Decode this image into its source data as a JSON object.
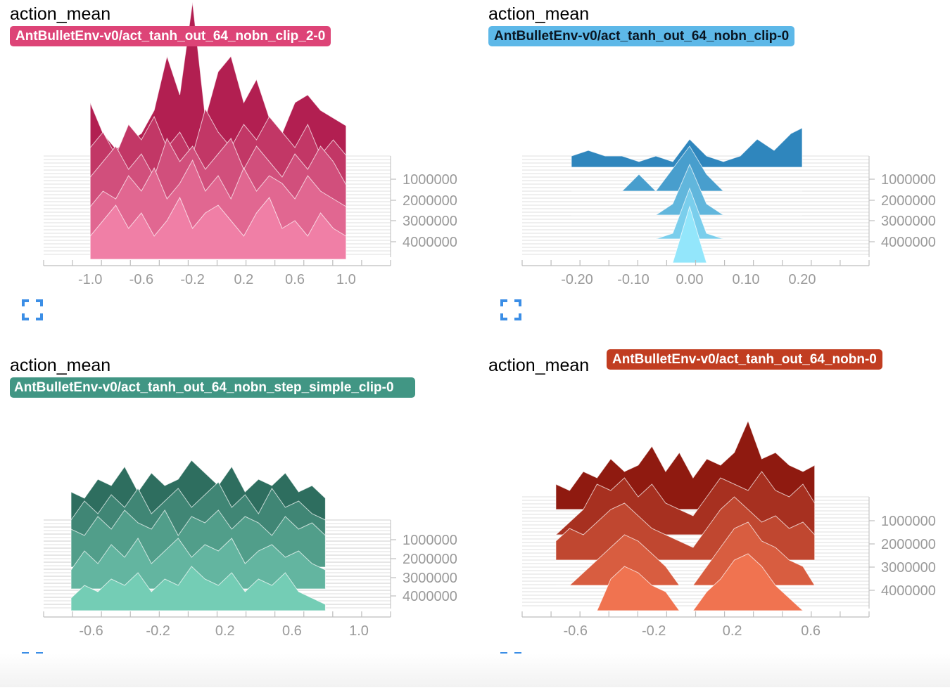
{
  "chart_data": [
    {
      "type": "area",
      "title": "action_mean",
      "run": "AntBulletEnv-v0/act_tanh_out_64_nobn_clip_2-0",
      "color_dark": "#b21f51",
      "color_light": "#f07fa6",
      "xlim": [
        -1.1,
        1.1
      ],
      "x_ticks": [
        "-1.0",
        "-0.6",
        "-0.2",
        "0.2",
        "0.6",
        "1.0"
      ],
      "y_ticks": [
        "1000000",
        "2000000",
        "3000000",
        "4000000"
      ],
      "steps": [
        0,
        1000000,
        2000000,
        3000000,
        4000000
      ],
      "series": [
        {
          "x": [
            -1.0,
            -0.9,
            -0.8,
            -0.7,
            -0.6,
            -0.5,
            -0.4,
            -0.3,
            -0.2,
            -0.1,
            0.0,
            0.1,
            0.2,
            0.3,
            0.4,
            0.5,
            0.6,
            0.7,
            0.8,
            0.9,
            1.0
          ],
          "values": [
            9,
            5,
            3,
            4,
            5,
            8,
            15,
            10,
            22,
            7,
            13,
            15,
            9,
            12,
            7,
            5,
            9,
            10,
            8,
            7,
            6
          ]
        },
        {
          "x": [
            -1.0,
            -0.9,
            -0.8,
            -0.7,
            -0.6,
            -0.5,
            -0.4,
            -0.3,
            -0.2,
            -0.1,
            0.0,
            0.1,
            0.2,
            0.3,
            0.4,
            0.5,
            0.6,
            0.7,
            0.8,
            0.9,
            1.0
          ],
          "values": [
            6,
            8,
            5,
            9,
            7,
            10,
            6,
            8,
            5,
            11,
            8,
            6,
            9,
            7,
            10,
            8,
            6,
            9,
            5,
            7,
            5
          ]
        },
        {
          "x": [
            -1.0,
            -0.9,
            -0.8,
            -0.7,
            -0.6,
            -0.5,
            -0.4,
            -0.3,
            -0.2,
            -0.1,
            0.0,
            0.1,
            0.2,
            0.3,
            0.4,
            0.5,
            0.6,
            0.7,
            0.8,
            0.9,
            1.0
          ],
          "values": [
            5,
            7,
            9,
            6,
            8,
            5,
            10,
            7,
            9,
            6,
            8,
            10,
            6,
            9,
            7,
            5,
            8,
            6,
            9,
            7,
            4
          ]
        },
        {
          "x": [
            -1.0,
            -0.9,
            -0.8,
            -0.7,
            -0.6,
            -0.5,
            -0.4,
            -0.3,
            -0.2,
            -0.1,
            0.0,
            0.1,
            0.2,
            0.3,
            0.4,
            0.5,
            0.6,
            0.7,
            0.8,
            0.9,
            1.0
          ],
          "values": [
            4,
            6,
            5,
            8,
            6,
            9,
            5,
            7,
            10,
            6,
            8,
            5,
            9,
            6,
            8,
            7,
            5,
            8,
            6,
            5,
            4
          ]
        },
        {
          "x": [
            -1.0,
            -0.9,
            -0.8,
            -0.7,
            -0.6,
            -0.5,
            -0.4,
            -0.3,
            -0.2,
            -0.1,
            0.0,
            0.1,
            0.2,
            0.3,
            0.4,
            0.5,
            0.6,
            0.7,
            0.8,
            0.9,
            1.0
          ],
          "values": [
            3,
            5,
            7,
            4,
            6,
            3,
            5,
            8,
            4,
            6,
            7,
            5,
            3,
            6,
            8,
            4,
            5,
            3,
            6,
            4,
            3
          ]
        }
      ]
    },
    {
      "type": "area",
      "title": "action_mean",
      "run": "AntBulletEnv-v0/act_tanh_out_64_nobn_clip-0",
      "color_dark": "#2f86bd",
      "color_light": "#93e6fb",
      "xlim": [
        -0.25,
        0.25
      ],
      "x_ticks": [
        "-0.20",
        "-0.10",
        "0.00",
        "0.10",
        "0.20"
      ],
      "y_ticks": [
        "1000000",
        "2000000",
        "3000000",
        "4000000"
      ],
      "steps": [
        0,
        1000000,
        2000000,
        3000000,
        4000000
      ],
      "series": [
        {
          "x": [
            -0.21,
            -0.18,
            -0.15,
            -0.12,
            -0.09,
            -0.06,
            -0.03,
            0.0,
            0.03,
            0.06,
            0.09,
            0.12,
            0.15,
            0.18,
            0.2
          ],
          "values": [
            2,
            3,
            2,
            2,
            1,
            2,
            1,
            5,
            2,
            1,
            2,
            5,
            3,
            6,
            7
          ]
        },
        {
          "x": [
            -0.21,
            -0.18,
            -0.15,
            -0.12,
            -0.09,
            -0.06,
            -0.03,
            0.0,
            0.03,
            0.06,
            0.09,
            0.12,
            0.15,
            0.18,
            0.2
          ],
          "values": [
            0,
            0,
            0,
            0,
            3,
            0,
            4,
            8,
            3,
            0,
            0,
            0,
            0,
            0,
            0
          ]
        },
        {
          "x": [
            -0.21,
            -0.18,
            -0.15,
            -0.12,
            -0.09,
            -0.06,
            -0.03,
            0.0,
            0.03,
            0.06,
            0.09,
            0.12,
            0.15,
            0.18,
            0.2
          ],
          "values": [
            0,
            0,
            0,
            0,
            0,
            0,
            2,
            9,
            2,
            0,
            0,
            0,
            0,
            0,
            0
          ]
        },
        {
          "x": [
            -0.21,
            -0.18,
            -0.15,
            -0.12,
            -0.09,
            -0.06,
            -0.03,
            0.0,
            0.03,
            0.06,
            0.09,
            0.12,
            0.15,
            0.18,
            0.2
          ],
          "values": [
            0,
            0,
            0,
            0,
            0,
            0,
            1,
            9,
            1,
            0,
            0,
            0,
            0,
            0,
            0
          ]
        },
        {
          "x": [
            -0.21,
            -0.18,
            -0.15,
            -0.12,
            -0.09,
            -0.06,
            -0.03,
            0.0,
            0.03,
            0.06,
            0.09,
            0.12,
            0.15,
            0.18,
            0.2
          ],
          "values": [
            0,
            0,
            0,
            0,
            0,
            0,
            0,
            10,
            0,
            0,
            0,
            0,
            0,
            0,
            0
          ]
        }
      ]
    },
    {
      "type": "area",
      "title": "action_mean",
      "run": "AntBulletEnv-v0/act_tanh_out_64_nobn_step_simple_clip-0",
      "color_dark": "#2e6e5f",
      "color_light": "#74cdb5",
      "xlim": [
        -0.8,
        1.0
      ],
      "x_ticks": [
        "-0.6",
        "-0.2",
        "0.2",
        "0.6",
        "1.0"
      ],
      "y_ticks": [
        "1000000",
        "2000000",
        "3000000",
        "4000000"
      ],
      "steps": [
        0,
        1000000,
        2000000,
        3000000,
        4000000
      ],
      "series": [
        {
          "x": [
            -0.72,
            -0.64,
            -0.56,
            -0.48,
            -0.4,
            -0.32,
            -0.24,
            -0.16,
            -0.08,
            0.0,
            0.08,
            0.16,
            0.24,
            0.32,
            0.4,
            0.48,
            0.56,
            0.64,
            0.72,
            0.8
          ],
          "values": [
            5,
            4,
            7,
            6,
            9,
            5,
            8,
            6,
            7,
            10,
            8,
            6,
            9,
            5,
            7,
            6,
            8,
            5,
            6,
            4
          ]
        },
        {
          "x": [
            -0.72,
            -0.64,
            -0.56,
            -0.48,
            -0.4,
            -0.32,
            -0.24,
            -0.16,
            -0.08,
            0.0,
            0.08,
            0.16,
            0.24,
            0.32,
            0.4,
            0.48,
            0.56,
            0.64,
            0.72,
            0.8
          ],
          "values": [
            4,
            7,
            5,
            8,
            6,
            9,
            5,
            7,
            9,
            6,
            8,
            10,
            6,
            8,
            5,
            9,
            6,
            7,
            5,
            4
          ]
        },
        {
          "x": [
            -0.72,
            -0.64,
            -0.56,
            -0.48,
            -0.4,
            -0.32,
            -0.24,
            -0.16,
            -0.08,
            0.0,
            0.08,
            0.16,
            0.24,
            0.32,
            0.4,
            0.48,
            0.56,
            0.64,
            0.72,
            0.8
          ],
          "values": [
            6,
            5,
            8,
            6,
            9,
            7,
            6,
            9,
            5,
            8,
            7,
            9,
            6,
            8,
            7,
            5,
            8,
            6,
            7,
            5
          ]
        },
        {
          "x": [
            -0.72,
            -0.64,
            -0.56,
            -0.48,
            -0.4,
            -0.32,
            -0.24,
            -0.16,
            -0.08,
            0.0,
            0.08,
            0.16,
            0.24,
            0.32,
            0.4,
            0.48,
            0.56,
            0.64,
            0.72,
            0.8
          ],
          "values": [
            3,
            6,
            4,
            7,
            5,
            8,
            4,
            6,
            8,
            5,
            7,
            6,
            8,
            4,
            6,
            7,
            5,
            6,
            4,
            3
          ]
        },
        {
          "x": [
            -0.72,
            -0.64,
            -0.56,
            -0.48,
            -0.4,
            -0.32,
            -0.24,
            -0.16,
            -0.08,
            0.0,
            0.08,
            0.16,
            0.24,
            0.32,
            0.4,
            0.48,
            0.56,
            0.64,
            0.72,
            0.8
          ],
          "values": [
            2,
            4,
            3,
            5,
            4,
            6,
            3,
            5,
            4,
            7,
            5,
            4,
            6,
            3,
            5,
            4,
            6,
            3,
            2,
            1
          ]
        }
      ]
    },
    {
      "type": "area",
      "title": "action_mean",
      "run": "AntBulletEnv-v0/act_tanh_out_64_nobn-0",
      "color_dark": "#8f1a10",
      "color_light": "#f07350",
      "xlim": [
        -0.8,
        0.7
      ],
      "x_ticks": [
        "-0.6",
        "-0.2",
        "0.2",
        "0.6"
      ],
      "y_ticks": [
        "1000000",
        "2000000",
        "3000000",
        "4000000"
      ],
      "steps": [
        0,
        1000000,
        2000000,
        3000000,
        4000000
      ],
      "series": [
        {
          "x": [
            -0.7,
            -0.63,
            -0.56,
            -0.49,
            -0.42,
            -0.35,
            -0.28,
            -0.21,
            -0.14,
            -0.07,
            0.0,
            0.07,
            0.14,
            0.21,
            0.28,
            0.35,
            0.42,
            0.49,
            0.56,
            0.62
          ],
          "values": [
            4,
            3,
            6,
            5,
            8,
            6,
            7,
            10,
            6,
            9,
            5,
            8,
            7,
            9,
            14,
            8,
            9,
            7,
            6,
            7
          ]
        },
        {
          "x": [
            -0.7,
            -0.63,
            -0.56,
            -0.49,
            -0.42,
            -0.35,
            -0.28,
            -0.21,
            -0.14,
            -0.07,
            0.0,
            0.07,
            0.14,
            0.21,
            0.28,
            0.35,
            0.42,
            0.49,
            0.56,
            0.62
          ],
          "values": [
            0,
            2,
            4,
            8,
            7,
            9,
            6,
            8,
            5,
            4,
            3,
            6,
            9,
            8,
            7,
            10,
            7,
            6,
            8,
            5
          ]
        },
        {
          "x": [
            -0.7,
            -0.63,
            -0.56,
            -0.49,
            -0.42,
            -0.35,
            -0.28,
            -0.21,
            -0.14,
            -0.07,
            0.0,
            0.07,
            0.14,
            0.21,
            0.28,
            0.35,
            0.42,
            0.49,
            0.56,
            0.62
          ],
          "values": [
            3,
            5,
            4,
            6,
            8,
            9,
            7,
            5,
            4,
            3,
            2,
            5,
            8,
            10,
            8,
            6,
            7,
            5,
            6,
            4
          ]
        },
        {
          "x": [
            -0.7,
            -0.63,
            -0.56,
            -0.49,
            -0.42,
            -0.35,
            -0.28,
            -0.21,
            -0.14,
            -0.07,
            0.0,
            0.07,
            0.14,
            0.21,
            0.28,
            0.35,
            0.42,
            0.49,
            0.56,
            0.62
          ],
          "values": [
            0,
            0,
            2,
            4,
            6,
            8,
            7,
            5,
            3,
            0,
            0,
            3,
            6,
            9,
            10,
            7,
            6,
            4,
            3,
            0
          ]
        },
        {
          "x": [
            -0.7,
            -0.63,
            -0.56,
            -0.49,
            -0.42,
            -0.35,
            -0.28,
            -0.21,
            -0.14,
            -0.07,
            0.0,
            0.07,
            0.14,
            0.21,
            0.28,
            0.35,
            0.42,
            0.49,
            0.56,
            0.62
          ],
          "values": [
            0,
            0,
            0,
            0,
            5,
            7,
            6,
            4,
            3,
            0,
            0,
            3,
            5,
            8,
            9,
            7,
            4,
            2,
            0,
            0
          ]
        }
      ]
    }
  ]
}
